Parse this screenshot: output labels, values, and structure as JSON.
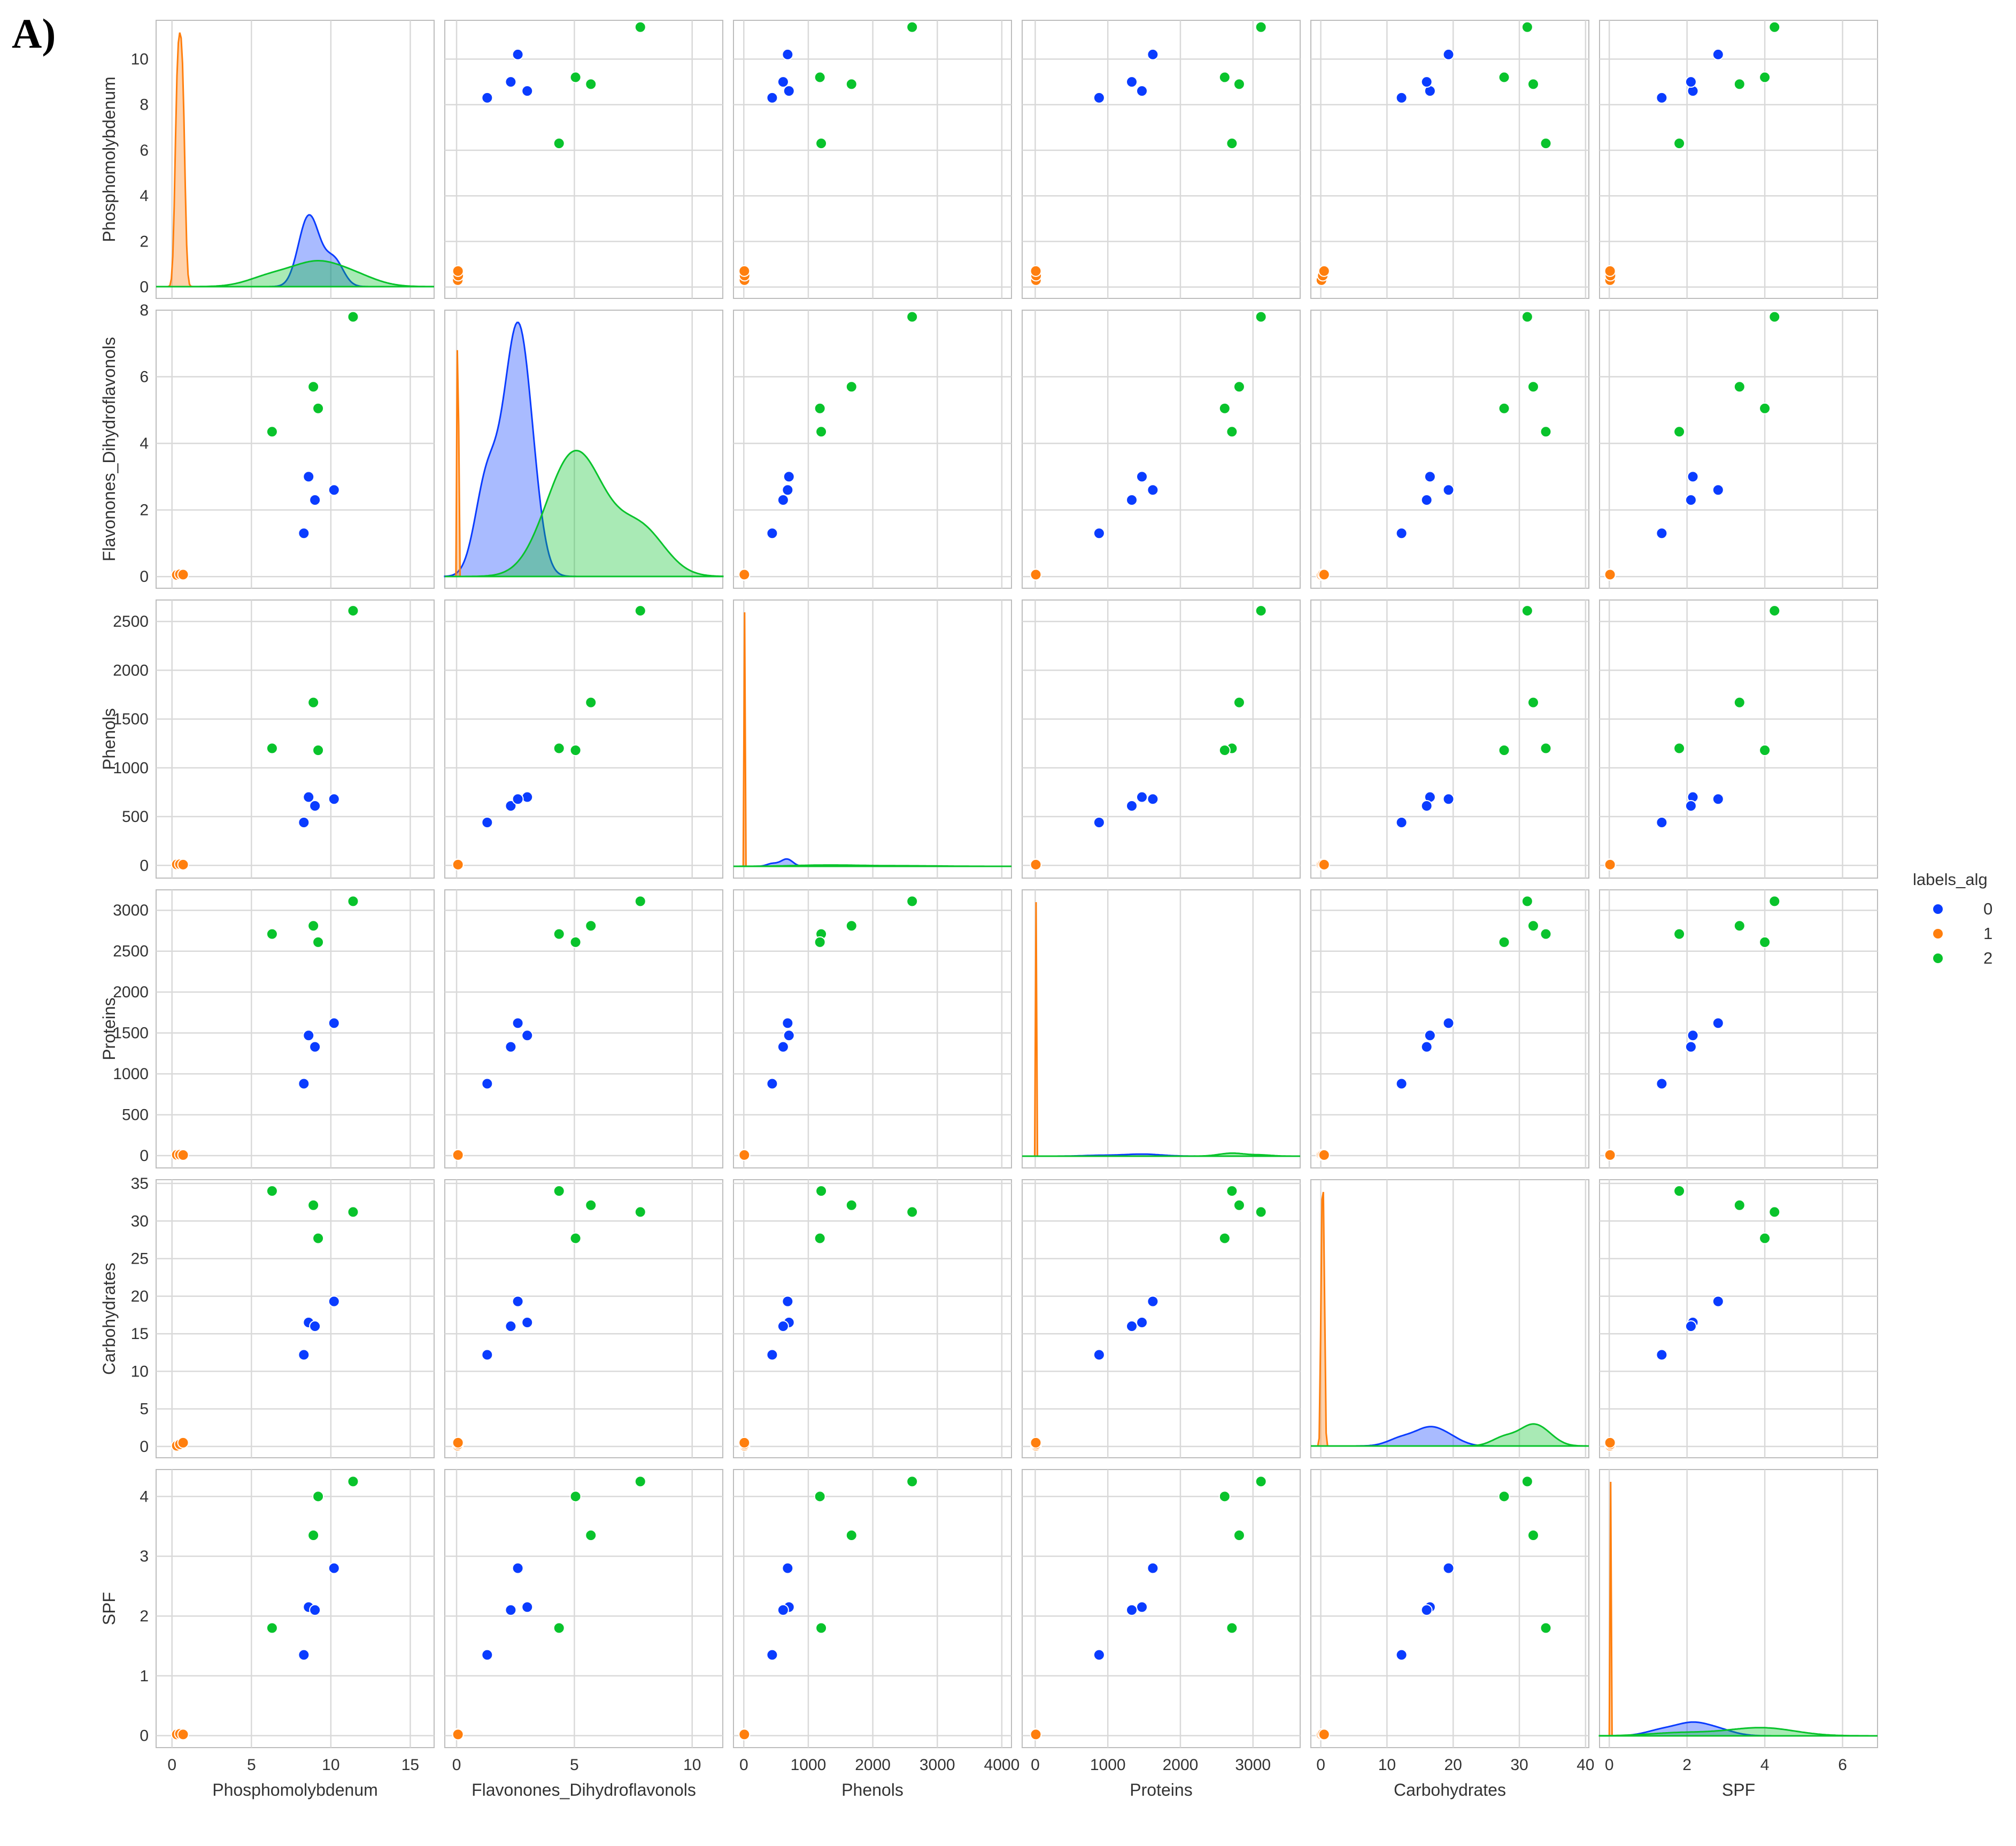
{
  "figure_label": "A)",
  "chart_data": {
    "type": "scatter",
    "kind": "pairplot",
    "variables": [
      "Phosphomolybdenum",
      "Flavonones_Dihydroflavonols",
      "Phenols",
      "Proteins",
      "Carbohydrates",
      "SPF"
    ],
    "diag_kind": "kde",
    "grid": true,
    "axes": {
      "Phosphomolybdenum": {
        "lim": [
          -1,
          16.5
        ],
        "ticks": [
          0,
          5,
          10,
          15
        ]
      },
      "Flavonones_Dihydroflavonols": {
        "lim": [
          -0.5,
          11.3
        ],
        "ticks": [
          0,
          5,
          10
        ]
      },
      "Phenols": {
        "lim": [
          -160,
          4150
        ],
        "ticks": [
          0,
          1000,
          2000,
          3000,
          4000
        ]
      },
      "Proteins": {
        "lim": [
          -180,
          3650
        ],
        "ticks": [
          0,
          1000,
          2000,
          3000
        ]
      },
      "Carbohydrates": {
        "lim": [
          -1.5,
          40.5
        ],
        "ticks": [
          0,
          10,
          20,
          30,
          40
        ]
      },
      "SPF": {
        "lim": [
          -0.25,
          6.9
        ],
        "ticks": [
          0,
          2,
          4,
          6
        ]
      }
    },
    "row_axes": {
      "Phosphomolybdenum": {
        "ticks": [
          0,
          2,
          4,
          6,
          8,
          10
        ]
      },
      "Flavonones_Dihydroflavonols": {
        "ticks": [
          0,
          2,
          4,
          6,
          8
        ]
      },
      "Phenols": {
        "ticks": [
          0,
          500,
          1000,
          1500,
          2000,
          2500
        ]
      },
      "Proteins": {
        "ticks": [
          0,
          500,
          1000,
          1500,
          2000,
          2500,
          3000
        ]
      },
      "Carbohydrates": {
        "ticks": [
          0,
          5,
          10,
          15,
          20,
          25,
          30,
          35
        ]
      },
      "SPF": {
        "ticks": [
          0,
          1,
          2,
          3,
          4
        ]
      }
    },
    "legend": {
      "title": "labels_alg",
      "position": "right",
      "entries": [
        {
          "label": "0",
          "color": "#0a3cff"
        },
        {
          "label": "1",
          "color": "#ff7f0e"
        },
        {
          "label": "2",
          "color": "#09c32c"
        }
      ]
    },
    "series": [
      {
        "name": "0",
        "color": "#0a3cff",
        "points": [
          [
            8.3,
            1.3,
            440,
            880,
            12.2,
            1.35
          ],
          [
            8.6,
            3.0,
            700,
            1470,
            16.5,
            2.15
          ],
          [
            9.0,
            2.3,
            610,
            1330,
            16.0,
            2.1
          ],
          [
            10.2,
            2.6,
            680,
            1620,
            19.3,
            2.8
          ]
        ]
      },
      {
        "name": "1",
        "color": "#ff7f0e",
        "points": [
          [
            0.3,
            0.05,
            10,
            10,
            0.1,
            0.02
          ],
          [
            0.5,
            0.07,
            12,
            12,
            0.3,
            0.03
          ],
          [
            0.7,
            0.06,
            8,
            8,
            0.5,
            0.02
          ]
        ]
      },
      {
        "name": "2",
        "color": "#09c32c",
        "points": [
          [
            6.3,
            4.35,
            1200,
            2710,
            34.0,
            1.8
          ],
          [
            9.2,
            5.05,
            1180,
            2610,
            27.7,
            4.0
          ],
          [
            8.9,
            5.7,
            1670,
            2810,
            32.1,
            3.35
          ],
          [
            11.4,
            7.8,
            2610,
            3110,
            31.2,
            4.25
          ]
        ]
      }
    ]
  }
}
